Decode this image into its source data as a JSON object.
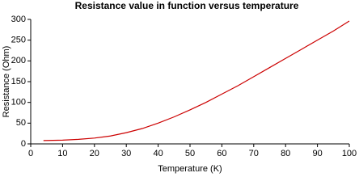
{
  "chart_data": {
    "type": "line",
    "title": "Resistance value in function versus temperature",
    "x_label": "Temperature (K)",
    "y_label": "Resistance (Ohm)",
    "x": [
      4,
      10,
      15,
      20,
      25,
      30,
      35,
      40,
      45,
      50,
      55,
      60,
      65,
      70,
      75,
      80,
      85,
      90,
      95,
      100
    ],
    "series": [
      {
        "color": "#cc0000",
        "values": [
          8,
          9,
          11,
          14,
          19,
          27,
          37,
          50,
          65,
          82,
          100,
          120,
          140,
          162,
          184,
          206,
          228,
          250,
          272,
          296
        ]
      }
    ],
    "xlim": [
      0,
      100
    ],
    "xticks": [
      0,
      10,
      20,
      30,
      40,
      50,
      60,
      70,
      80,
      90,
      100
    ],
    "ylim": [
      0,
      300
    ],
    "yticks": [
      0,
      50,
      100,
      150,
      200,
      250,
      300
    ],
    "grid": false
  }
}
